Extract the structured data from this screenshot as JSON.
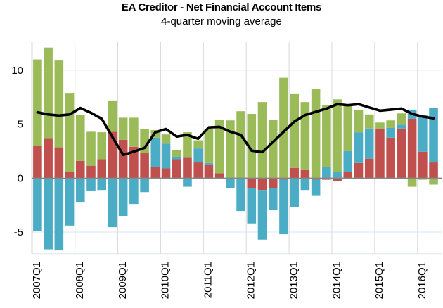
{
  "chart_data": {
    "type": "bar",
    "stacked": true,
    "title": "EA Creditor - Net Financial Account Items",
    "subtitle": "4-quarter moving average",
    "xlabel": "",
    "ylabel": "",
    "ylim": [
      -7,
      12.6
    ],
    "yticks": [
      -5,
      0,
      5,
      10
    ],
    "ytick_labels": [
      "-5",
      "0",
      "5",
      "10"
    ],
    "grid": true,
    "legend": "none",
    "categories": [
      "2007Q1",
      "2007Q2",
      "2007Q3",
      "2007Q4",
      "2008Q1",
      "2008Q2",
      "2008Q3",
      "2008Q4",
      "2009Q1",
      "2009Q2",
      "2009Q3",
      "2009Q4",
      "2010Q1",
      "2010Q2",
      "2010Q3",
      "2010Q4",
      "2011Q1",
      "2011Q2",
      "2011Q3",
      "2011Q4",
      "2012Q1",
      "2012Q2",
      "2012Q3",
      "2012Q4",
      "2013Q1",
      "2013Q2",
      "2013Q3",
      "2013Q4",
      "2014Q1",
      "2014Q2",
      "2014Q3",
      "2014Q4",
      "2015Q1",
      "2015Q2",
      "2015Q3",
      "2015Q4",
      "2016Q1",
      "2016Q2"
    ],
    "xtick_labels": [
      "2007Q1",
      "2008Q1",
      "2009Q1",
      "2010Q1",
      "2011Q1",
      "2012Q1",
      "2013Q1",
      "2014Q1",
      "2015Q1",
      "2016Q1"
    ],
    "series": [
      {
        "name": "red",
        "color": "#C0504D",
        "values": [
          3.0,
          3.7,
          2.85,
          0.6,
          1.6,
          1.15,
          1.75,
          4.3,
          3.55,
          2.9,
          2.3,
          1.0,
          0.9,
          1.75,
          1.95,
          1.45,
          1.2,
          0.45,
          -0.1,
          0.0,
          -0.9,
          -1.1,
          -0.95,
          -0.15,
          0.95,
          0.75,
          -0.15,
          -0.15,
          -0.3,
          0.55,
          1.4,
          1.8,
          4.6,
          3.75,
          4.6,
          5.5,
          2.45,
          1.45
        ]
      },
      {
        "name": "blue",
        "color": "#4BACC6",
        "values": [
          -4.9,
          -6.6,
          -6.7,
          -4.4,
          -2.2,
          -1.15,
          -1.1,
          -4.55,
          -3.5,
          -2.4,
          -1.3,
          2.75,
          2.3,
          0.25,
          -0.8,
          1.3,
          0.2,
          -0.1,
          -0.85,
          -3.05,
          -3.3,
          -4.6,
          -2.0,
          -5.05,
          -2.65,
          -1.1,
          -1.5,
          1.05,
          0.6,
          1.95,
          2.85,
          2.8,
          0.0,
          0.9,
          0.35,
          0.85,
          3.4,
          5.05
        ]
      },
      {
        "name": "green",
        "color": "#9BBB59",
        "values": [
          8.0,
          8.4,
          8.05,
          7.3,
          4.25,
          3.15,
          2.5,
          2.9,
          2.05,
          2.7,
          2.25,
          0.7,
          0.85,
          0.6,
          2.3,
          0.75,
          3.15,
          4.95,
          5.35,
          6.2,
          5.95,
          7.05,
          5.4,
          9.3,
          6.9,
          6.3,
          8.25,
          5.7,
          6.7,
          4.2,
          2.05,
          1.3,
          0.55,
          0.7,
          1.05,
          -0.8,
          -0.15,
          -0.6
        ]
      },
      {
        "name": "total (line)",
        "type": "line",
        "color": "#000000",
        "values": [
          6.1,
          5.9,
          5.8,
          5.9,
          6.5,
          6.05,
          5.5,
          3.8,
          2.15,
          2.45,
          2.8,
          4.25,
          4.55,
          3.85,
          4.0,
          3.65,
          4.7,
          4.75,
          4.3,
          4.0,
          2.55,
          2.4,
          3.35,
          4.3,
          5.25,
          5.85,
          6.15,
          6.45,
          6.85,
          6.75,
          6.85,
          6.55,
          6.25,
          6.35,
          6.45,
          5.95,
          5.7,
          5.55
        ]
      }
    ]
  }
}
